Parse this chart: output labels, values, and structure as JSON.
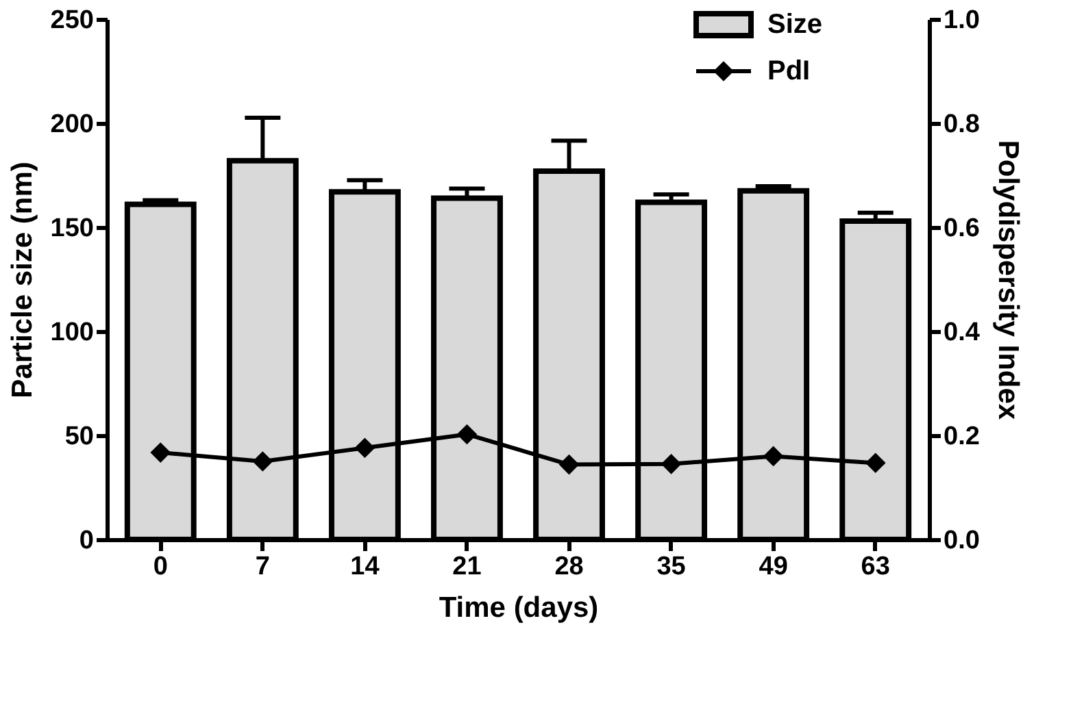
{
  "chart_data": {
    "type": "bar",
    "xlabel": "Time (days)",
    "ylabel": "Particle size (nm)",
    "y2label": "Polydispersity Index",
    "categories": [
      "0",
      "7",
      "14",
      "21",
      "28",
      "35",
      "49",
      "63"
    ],
    "series": [
      {
        "name": "Size",
        "color": "#d9d9d9",
        "values": [
          161,
          182,
          167,
          164,
          177,
          162,
          167.5,
          153
        ],
        "errors": [
          [
            161,
            163
          ],
          [
            182,
            202.6
          ],
          [
            167,
            172.6
          ],
          [
            164,
            168.6
          ],
          [
            177,
            191.6
          ],
          [
            162,
            165.8
          ],
          [
            167.5,
            169.7
          ],
          [
            153,
            157
          ]
        ]
      },
      {
        "name": "PdI",
        "type": "line",
        "axis": "y2",
        "color": "#000000",
        "marker": "diamond",
        "values": [
          0.167,
          0.15,
          0.176,
          0.202,
          0.144,
          0.145,
          0.16,
          0.147
        ]
      }
    ],
    "ylim": [
      0,
      250
    ],
    "yticks": [
      0,
      50,
      100,
      150,
      200,
      250
    ],
    "y2lim": [
      0,
      1
    ],
    "y2ticks": [
      {
        "value": 0,
        "label": "0.0"
      },
      {
        "value": 0.2,
        "label": "0.2"
      },
      {
        "value": 0.4,
        "label": "0.4"
      },
      {
        "value": 0.6,
        "label": "0.6"
      },
      {
        "value": 0.8,
        "label": "0.8"
      },
      {
        "value": 1,
        "label": "1.0"
      }
    ],
    "grid": false,
    "legend": "top right"
  }
}
